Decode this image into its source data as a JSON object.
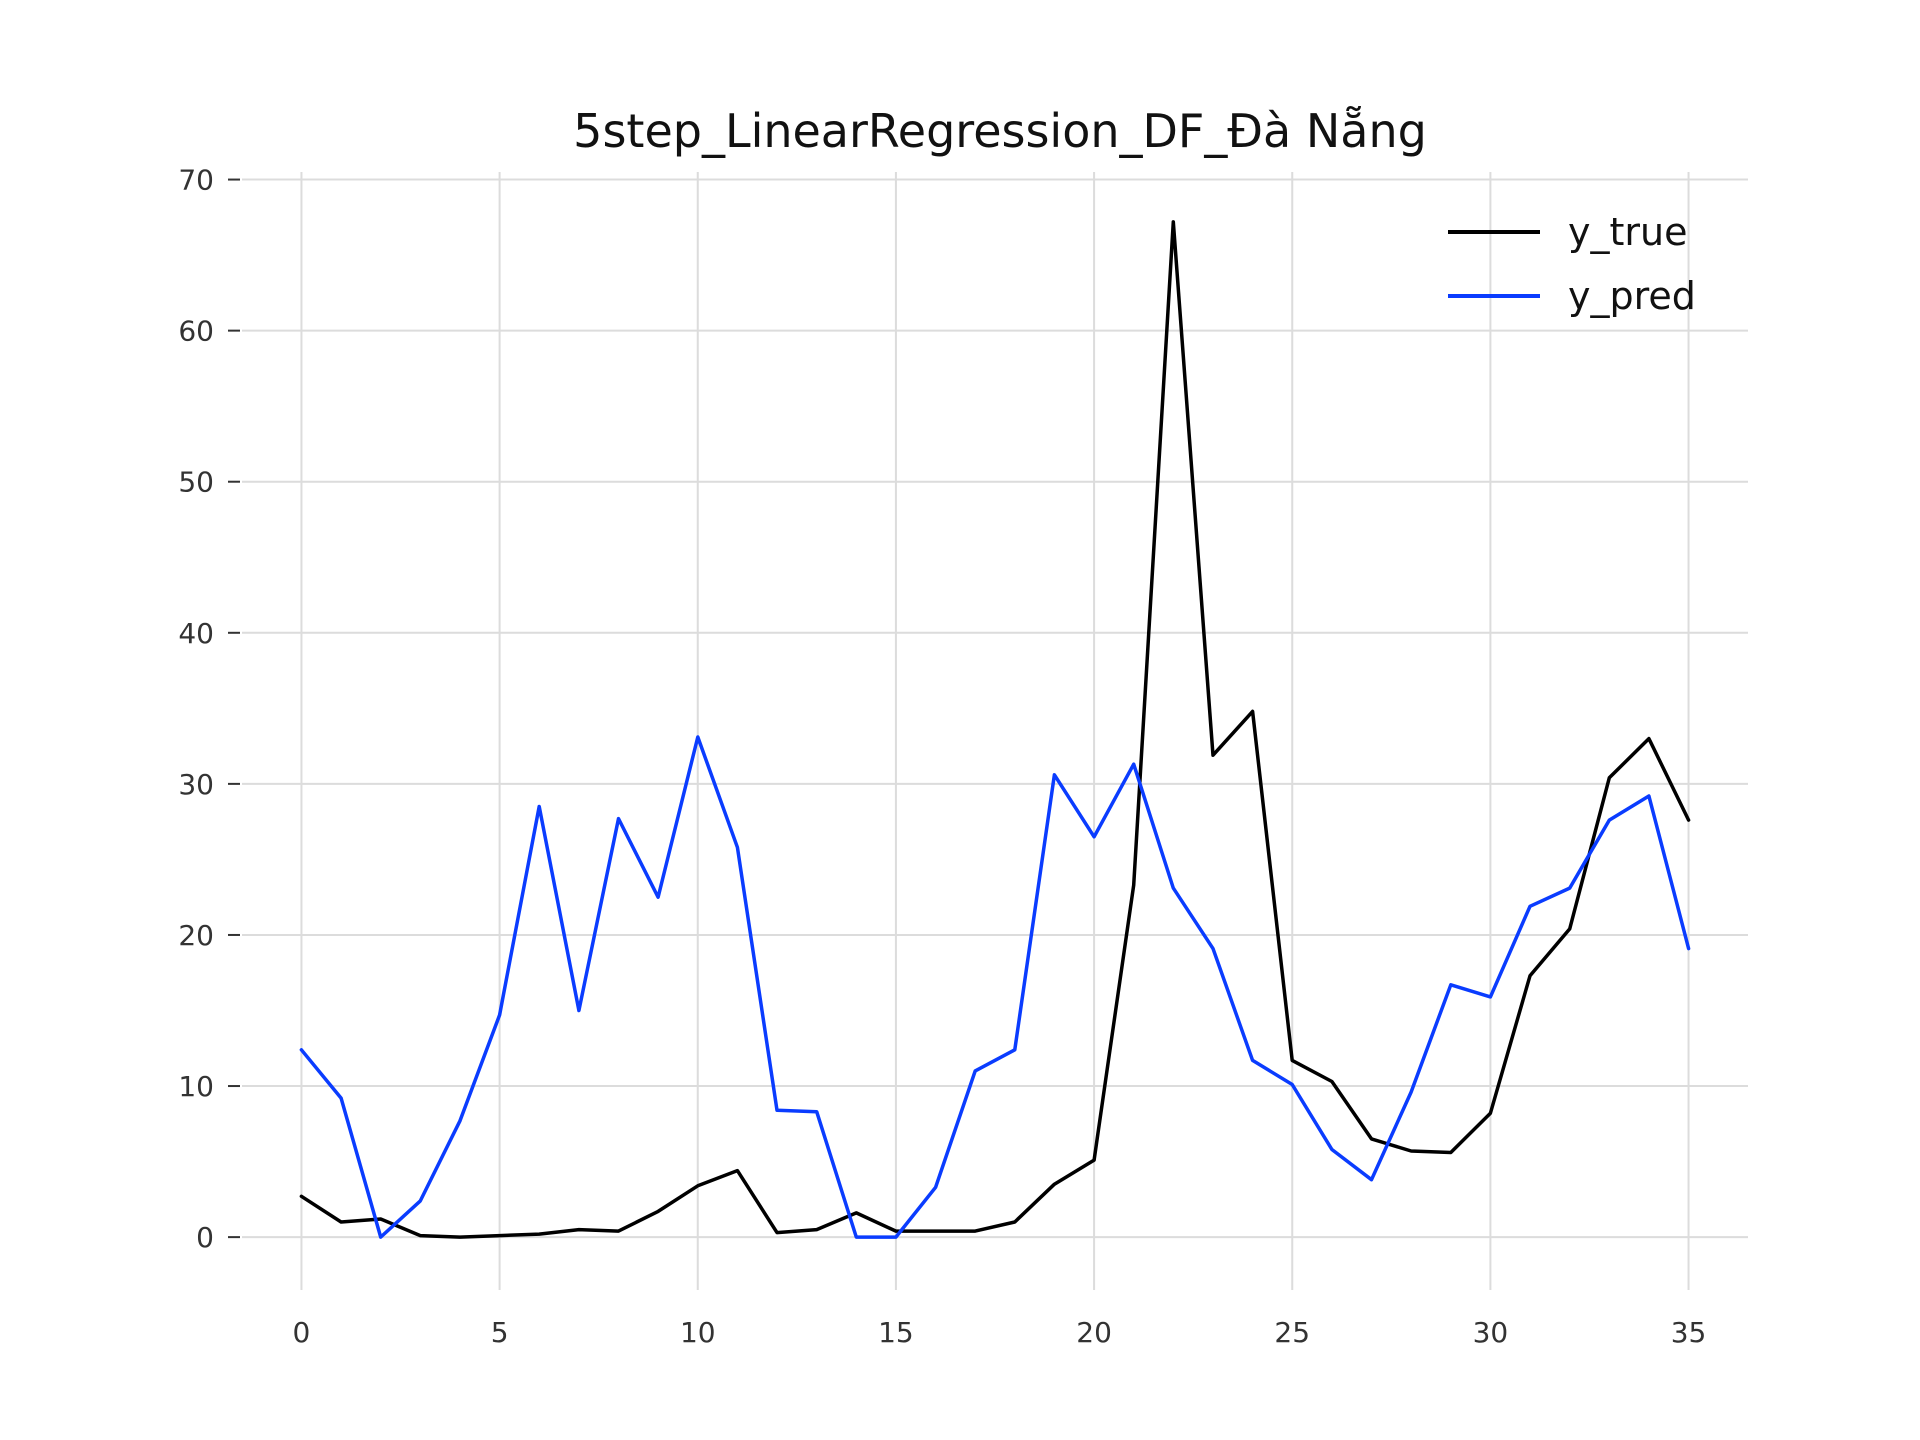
{
  "chart_data": {
    "type": "line",
    "title": "5step_LinearRegression_DF_Đà Nẵng",
    "xlabel": "",
    "ylabel": "",
    "xlim": [
      -1.5,
      36.5
    ],
    "ylim": [
      -3.5,
      70.5
    ],
    "x_ticks": [
      0,
      5,
      10,
      15,
      20,
      25,
      30,
      35
    ],
    "y_ticks": [
      0,
      10,
      20,
      30,
      40,
      50,
      60,
      70
    ],
    "grid": true,
    "legend_position": "top-right",
    "x": [
      0,
      1,
      2,
      3,
      4,
      5,
      6,
      7,
      8,
      9,
      10,
      11,
      12,
      13,
      14,
      15,
      16,
      17,
      18,
      19,
      20,
      21,
      22,
      23,
      24,
      25,
      26,
      27,
      28,
      29,
      30,
      31,
      32,
      33,
      34,
      35
    ],
    "series": [
      {
        "name": "y_true",
        "color": "#000000",
        "values": [
          2.7,
          1.0,
          1.2,
          0.1,
          0.0,
          0.1,
          0.2,
          0.5,
          0.4,
          1.7,
          3.4,
          4.4,
          0.3,
          0.5,
          1.6,
          0.4,
          0.4,
          0.4,
          1.0,
          3.5,
          5.1,
          23.3,
          67.2,
          31.9,
          34.8,
          11.7,
          10.3,
          6.5,
          5.7,
          5.6,
          8.2,
          17.3,
          20.4,
          30.4,
          33.0,
          27.6
        ]
      },
      {
        "name": "y_pred",
        "color": "#0a3cff",
        "values": [
          12.4,
          9.2,
          0.0,
          2.4,
          7.7,
          14.7,
          28.5,
          15.0,
          27.7,
          22.5,
          33.1,
          25.8,
          8.4,
          8.3,
          0.0,
          0.0,
          3.3,
          11.0,
          12.4,
          30.6,
          26.5,
          31.3,
          23.1,
          19.1,
          11.7,
          10.1,
          5.8,
          3.8,
          9.6,
          16.7,
          15.9,
          21.9,
          23.1,
          27.6,
          29.2,
          19.1
        ]
      }
    ]
  }
}
